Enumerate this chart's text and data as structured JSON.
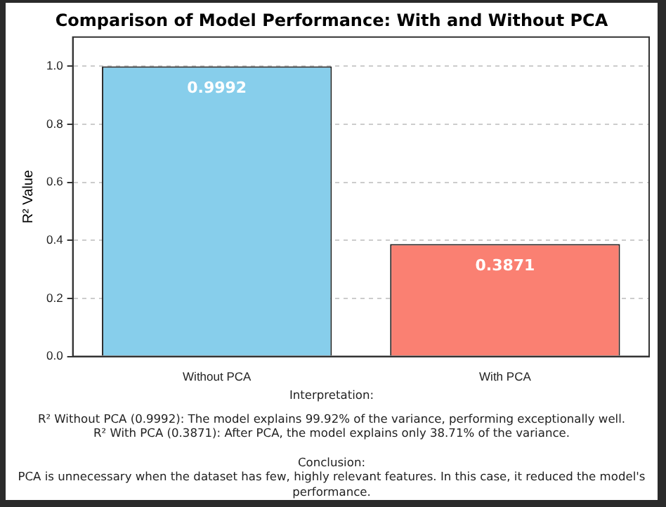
{
  "chart_data": {
    "type": "bar",
    "title": "Comparison of Model Performance: With and Without PCA",
    "ylabel": "R² Value",
    "categories": [
      "Without PCA",
      "With PCA"
    ],
    "values": [
      0.9992,
      0.3871
    ],
    "colors": [
      "#87ceeb",
      "#fa8072"
    ],
    "ylim": [
      0,
      1.1
    ],
    "yticks": [
      {
        "value": 0,
        "label": "0.0"
      },
      {
        "value": 0.2,
        "label": "0.2"
      },
      {
        "value": 0.4,
        "label": "0.4"
      },
      {
        "value": 0.6,
        "label": "0.6"
      },
      {
        "value": 0.8,
        "label": "0.8"
      },
      {
        "value": 1,
        "label": "1.0"
      }
    ],
    "grid": "y",
    "data_labels": true,
    "annotations": [
      "Interpretation:",
      "R² Without PCA (0.9992): The model explains 99.92% of the variance, performing exceptionally well.",
      "R² With PCA (0.3871): After PCA, the model explains only 38.71% of the variance.",
      "Conclusion:",
      "PCA is unnecessary when the dataset has few, highly relevant features. In this case, it reduced the model's performance."
    ]
  }
}
